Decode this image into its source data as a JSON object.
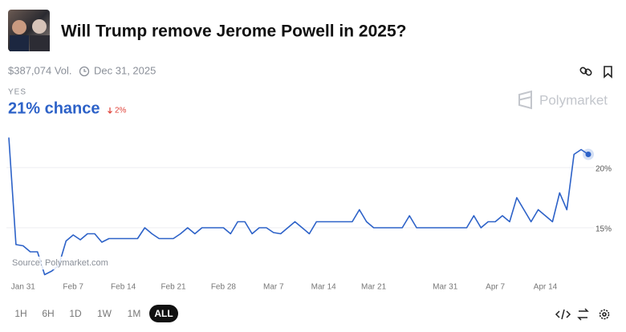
{
  "header": {
    "title": "Will Trump remove Jerome Powell in 2025?",
    "volume": "$387,074 Vol.",
    "end_date": "Dec 31, 2025"
  },
  "outcome": {
    "label": "YES",
    "chance": "21% chance",
    "change": "2%"
  },
  "brand": "Polymarket",
  "source": "Source: Polymarket.com",
  "ranges": [
    "1H",
    "6H",
    "1D",
    "1W",
    "1M",
    "ALL"
  ],
  "selected_range": "ALL",
  "chart_data": {
    "type": "line",
    "color": "#2d62c8",
    "x": [
      "Jan 29",
      "Jan 30",
      "Jan 31",
      "Feb 1",
      "Feb 2",
      "Feb 3",
      "Feb 4",
      "Feb 5",
      "Feb 6",
      "Feb 7",
      "Feb 8",
      "Feb 9",
      "Feb 10",
      "Feb 11",
      "Feb 12",
      "Feb 13",
      "Feb 14",
      "Feb 15",
      "Feb 16",
      "Feb 17",
      "Feb 18",
      "Feb 19",
      "Feb 20",
      "Feb 21",
      "Feb 22",
      "Feb 23",
      "Feb 24",
      "Feb 25",
      "Feb 26",
      "Feb 27",
      "Feb 28",
      "Mar 1",
      "Mar 2",
      "Mar 3",
      "Mar 4",
      "Mar 5",
      "Mar 6",
      "Mar 7",
      "Mar 8",
      "Mar 9",
      "Mar 10",
      "Mar 11",
      "Mar 12",
      "Mar 13",
      "Mar 14",
      "Mar 15",
      "Mar 16",
      "Mar 17",
      "Mar 18",
      "Mar 19",
      "Mar 20",
      "Mar 21",
      "Mar 22",
      "Mar 23",
      "Mar 24",
      "Mar 25",
      "Mar 26",
      "Mar 27",
      "Mar 28",
      "Mar 29",
      "Mar 30",
      "Mar 31",
      "Apr 1",
      "Apr 2",
      "Apr 3",
      "Apr 4",
      "Apr 5",
      "Apr 6",
      "Apr 7",
      "Apr 8",
      "Apr 9",
      "Apr 10",
      "Apr 11",
      "Apr 12",
      "Apr 13",
      "Apr 14",
      "Apr 15",
      "Apr 16",
      "Apr 17",
      "Apr 18",
      "Apr 19",
      "Apr 20"
    ],
    "values": [
      22.5,
      13.6,
      13.5,
      13.0,
      13.0,
      11.1,
      11.4,
      11.9,
      13.9,
      14.4,
      14.0,
      14.5,
      14.5,
      13.8,
      14.1,
      14.1,
      14.1,
      14.1,
      14.1,
      15.0,
      14.5,
      14.1,
      14.1,
      14.1,
      14.5,
      15.0,
      14.5,
      15.0,
      15.0,
      15.0,
      15.0,
      14.5,
      15.5,
      15.5,
      14.5,
      15.0,
      15.0,
      14.6,
      14.5,
      15.0,
      15.5,
      15.0,
      14.5,
      15.5,
      15.5,
      15.5,
      15.5,
      15.5,
      15.5,
      16.5,
      15.5,
      15.0,
      15.0,
      15.0,
      15.0,
      15.0,
      16.0,
      15.0,
      15.0,
      15.0,
      15.0,
      15.0,
      15.0,
      15.0,
      15.0,
      16.0,
      15.0,
      15.5,
      15.5,
      16.0,
      15.5,
      17.5,
      16.5,
      15.5,
      16.5,
      16.0,
      15.5,
      17.9,
      16.5,
      21.1,
      21.5,
      21.1
    ],
    "xticks": [
      "Jan 31",
      "Feb 7",
      "Feb 14",
      "Feb 21",
      "Feb 28",
      "Mar 7",
      "Mar 14",
      "Mar 21",
      "Mar 31",
      "Apr 7",
      "Apr 14"
    ],
    "ylim": [
      11,
      23
    ],
    "yticks": [
      {
        "value": 15,
        "label": "15%"
      },
      {
        "value": 20,
        "label": "20%"
      }
    ],
    "grid": true
  }
}
